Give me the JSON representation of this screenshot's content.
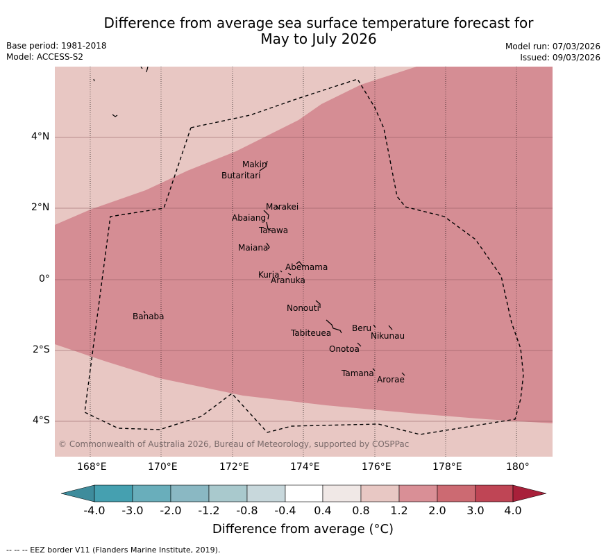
{
  "title_line1": "Difference from average sea surface temperature forecast for",
  "title_line2": "May to July 2026",
  "base_period": "Base period: 1981-2018",
  "model": "Model: ACCESS-S2",
  "model_run": "Model run: 07/03/2026",
  "issued": "Issued: 09/03/2026",
  "copyright": "© Commonwealth of Australia 2026, Bureau of Meteorology, supported by COSPPac",
  "lon_ticks": [
    "168°E",
    "170°E",
    "172°E",
    "174°E",
    "176°E",
    "178°E",
    "180°"
  ],
  "lat_ticks": [
    "4°N",
    "2°N",
    "0°",
    "2°S",
    "4°S"
  ],
  "islands": [
    "Makin",
    "Butaritari",
    "Marakei",
    "Abaiang",
    "Tarawa",
    "Maiana",
    "Abemama",
    "Kuria",
    "Aranuka",
    "Nonouti",
    "Banaba",
    "Beru",
    "Nikunau",
    "Tabiteuea",
    "Onotoa",
    "Tamana",
    "Arorae"
  ],
  "colorbar": {
    "labels": [
      "-4.0",
      "-3.0",
      "-2.0",
      "-1.2",
      "-0.8",
      "-0.4",
      "0.4",
      "0.8",
      "1.2",
      "2.0",
      "3.0",
      "4.0"
    ],
    "colors": [
      "#3e8c9c",
      "#45a0b0",
      "#69aebb",
      "#8ab8c3",
      "#a9c9cd",
      "#c8d8dc",
      "#ffffff",
      "#f0e8e6",
      "#e8c8c4",
      "#d98f96",
      "#cc6a72",
      "#bf4555",
      "#a8203a"
    ],
    "title": "Difference from average (°C)"
  },
  "map_colors": {
    "light": "#e8c7c3",
    "medium": "#d58d94"
  },
  "footnote": "--  --  -- EEZ border V11 (Flanders Marine Institute, 2019)."
}
